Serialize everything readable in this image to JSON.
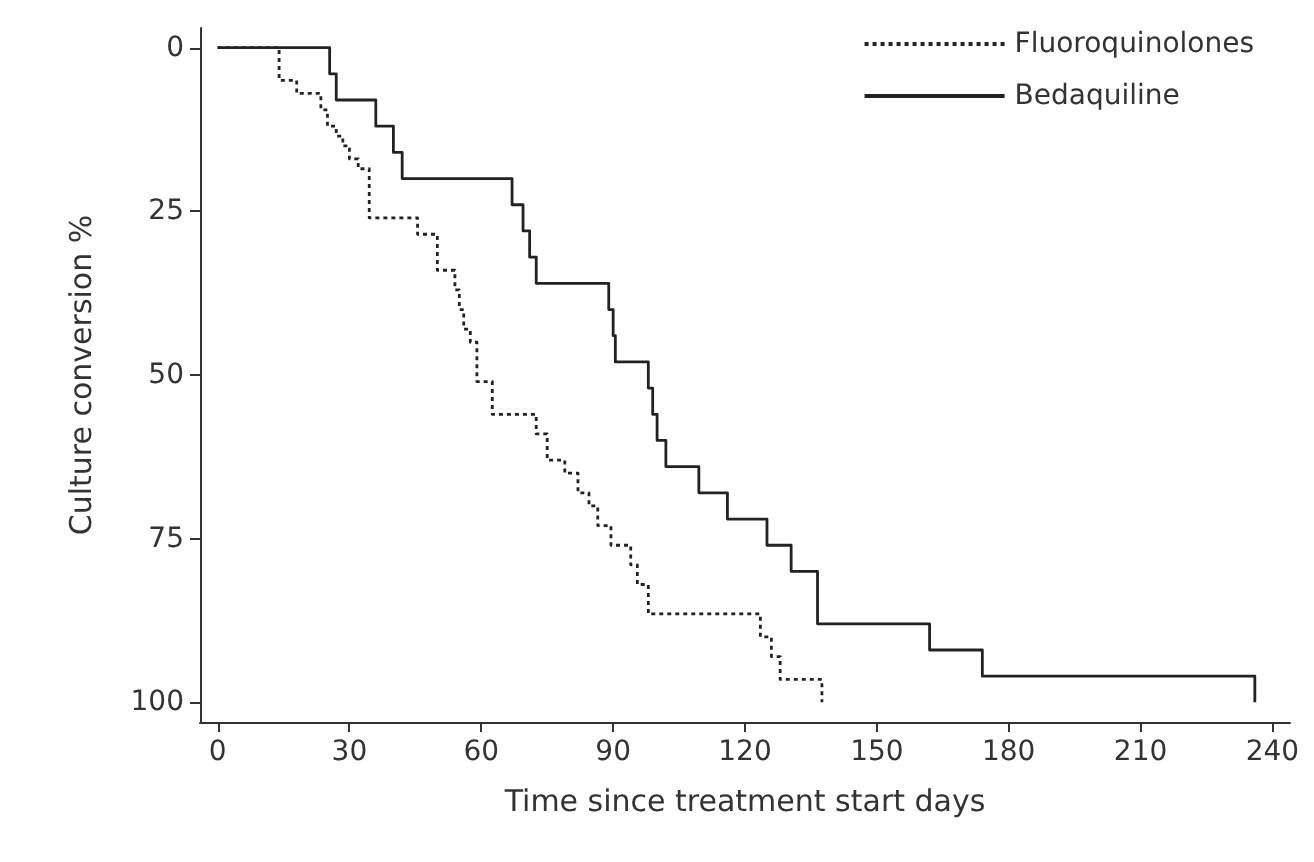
{
  "chart_data": {
    "type": "step",
    "xlabel": "Time since treatment start days",
    "ylabel": "Culture conversion %",
    "xlim": [
      -4,
      244
    ],
    "xticks": [
      0,
      30,
      60,
      90,
      120,
      150,
      180,
      210,
      240
    ],
    "ylim": [
      103,
      -3
    ],
    "yticks": [
      0,
      25,
      50,
      75,
      100
    ],
    "grid": false,
    "legend": "top right",
    "marker": "none",
    "series": [
      {
        "name": "Fluoroquinolones",
        "color": "#222222",
        "line_style": "dotted",
        "x": [
          0,
          14,
          18,
          23.5,
          25,
          27,
          28.5,
          30,
          32,
          34.5,
          45.5,
          50,
          54,
          55,
          56,
          57.5,
          59,
          62.5,
          72.5,
          75,
          79,
          82,
          84.5,
          86.5,
          89.5,
          94,
          95.5,
          98,
          123.5,
          126,
          128,
          137.5
        ],
        "values": [
          0,
          5,
          7,
          9.5,
          12,
          13.5,
          15,
          17,
          18.5,
          26,
          28.5,
          34,
          37,
          40,
          43,
          45,
          51,
          56,
          59,
          63,
          65,
          68,
          70,
          73,
          76,
          79,
          82,
          86.5,
          90,
          93,
          96.5,
          100
        ]
      },
      {
        "name": "Bedaquiline",
        "color": "#222222",
        "line_style": "solid",
        "x": [
          0,
          25.5,
          27,
          36,
          40,
          42,
          67,
          69.5,
          71,
          72.5,
          89,
          90,
          90.5,
          98,
          99,
          100,
          102,
          109.5,
          116,
          125,
          130.5,
          136.5,
          162,
          174,
          236
        ],
        "values": [
          0,
          4,
          8,
          12,
          16,
          20,
          24,
          28,
          32,
          36,
          40,
          44,
          48,
          52,
          56,
          60,
          64,
          68,
          72,
          76,
          80,
          88,
          92,
          96,
          100
        ]
      }
    ]
  }
}
